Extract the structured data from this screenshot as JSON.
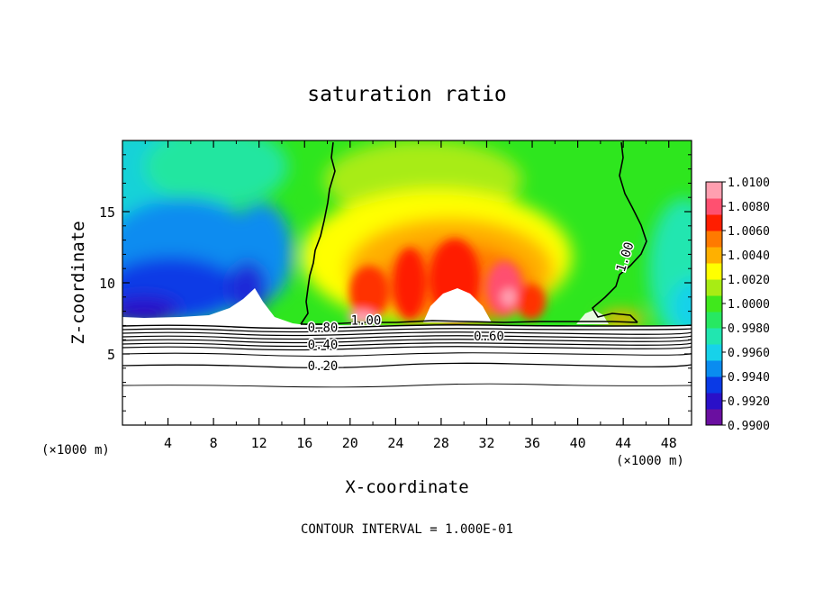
{
  "chart_data": {
    "type": "heatmap",
    "title": "saturation ratio",
    "xlabel": "X-coordinate",
    "ylabel": "Z-coordinate",
    "x_unit_left": "(×1000 m)",
    "x_unit_right": "(×1000 m)",
    "footer": "CONTOUR INTERVAL = 1.000E-01",
    "xlim": [
      0,
      50
    ],
    "ylim": [
      0,
      20
    ],
    "x_ticks": [
      4,
      8,
      12,
      16,
      20,
      24,
      28,
      32,
      36,
      40,
      44,
      48
    ],
    "x_tick_labels": [
      "4",
      "8",
      "12",
      "16",
      "20",
      "24",
      "28",
      "32",
      "36",
      "40",
      "44",
      "48"
    ],
    "y_ticks": [
      5,
      10,
      15
    ],
    "y_tick_labels": [
      "5",
      "10",
      "15"
    ],
    "colorbar": {
      "min": 0.99,
      "max": 1.01,
      "labels": [
        "0.9900",
        "0.9920",
        "0.9940",
        "0.9960",
        "0.9980",
        "1.0000",
        "1.0020",
        "1.0040",
        "1.0060",
        "1.0080",
        "1.0100"
      ],
      "colors": [
        "#6a0fa0",
        "#2a10c8",
        "#0a3ae6",
        "#0a8cf0",
        "#17d2ea",
        "#21e6b0",
        "#27e862",
        "#40e81c",
        "#a8ec14",
        "#ffff00",
        "#ffb000",
        "#ff7a00",
        "#ff1e00",
        "#ff5070",
        "#ff9fb0"
      ]
    },
    "contour_labels": [
      {
        "text": "1.00",
        "x": 21.4,
        "z": 7.3,
        "rotate": 0
      },
      {
        "text": "1.00",
        "x": 44.2,
        "z": 11.8,
        "rotate": -72
      },
      {
        "text": "0.80",
        "x": 17.6,
        "z": 6.8,
        "rotate": 0
      },
      {
        "text": "0.60",
        "x": 32.2,
        "z": 6.2,
        "rotate": 0
      },
      {
        "text": "0.40",
        "x": 17.6,
        "z": 5.6,
        "rotate": 0
      },
      {
        "text": "0.20",
        "x": 17.6,
        "z": 4.1,
        "rotate": 0
      }
    ],
    "contour_levels_below_cloud": [
      7.0,
      6.8,
      6.6,
      6.4,
      6.2,
      6.0,
      5.8,
      5.4,
      4.6,
      2.9
    ]
  }
}
